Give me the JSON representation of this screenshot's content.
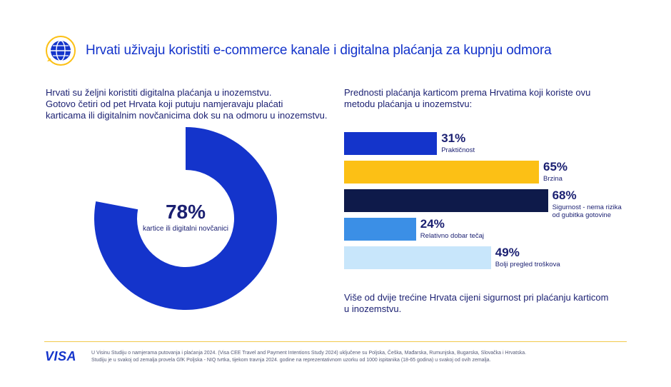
{
  "header": {
    "title": "Hrvati uživaju koristiti e-commerce kanale i digitalna plaćanja za kupnju odmora",
    "icon": "globe-icon"
  },
  "left": {
    "lines": [
      "Hrvati su željni koristiti digitalna plaćanja u inozemstvu.",
      "Gotovo četiri od pet Hrvata koji putuju namjeravaju plaćati",
      "karticama ili digitalnim novčanicima dok su na odmoru u inozemstvu."
    ]
  },
  "right": {
    "heading": "Prednosti plaćanja karticom prema Hrvatima koji koriste ovu metodu plaćanja u inozemstvu:",
    "note": "Više od dvije trećine Hrvata cijeni sigurnost pri plaćanju karticom u inozemstvu."
  },
  "footer": {
    "logo_text": "VISA",
    "footnote_lines": [
      "U Visinu Studiju o namjerama putovanja i plaćanja 2024. (Visa CEE Travel and Payment Intentions Study 2024) uključene su Poljska, Češka, Mađarska, Rumunjska, Bugarska, Slovačka i Hrvatska.",
      "Studiju je u svakoj od zemalja provela GfK Poljska - NIQ tvrtka,  tijekom travnja 2024.  godine na reprezentativnom uzorku od 1000 ispitanika (18-65 godina) u svakoj od ovih zemalja."
    ]
  },
  "colors": {
    "navy": "#1a1f71",
    "blue": "#1434cb",
    "gold": "#fcc015",
    "dark_navy": "#0e1a4a",
    "sky": "#3b8fe6",
    "pale": "#c8e6fb",
    "track": "#ffffff"
  },
  "chart_data": [
    {
      "type": "pie",
      "subtype": "donut",
      "value": 78,
      "value_label": "78%",
      "label": "kartice ili digitalni novčanici",
      "max": 100
    },
    {
      "type": "bar",
      "orientation": "horizontal",
      "xlim": [
        0,
        100
      ],
      "categories": [
        "Praktičnost",
        "Brzina",
        "Sigurnost - nema rizika od gubitka gotovine",
        "Relativno dobar tečaj",
        "Bolji pregled troškova"
      ],
      "label_lines": [
        [
          "Praktičnost"
        ],
        [
          "Brzina"
        ],
        [
          "Sigurnost - nema rizika",
          "od gubitka gotovine"
        ],
        [
          "Relativno dobar tečaj"
        ],
        [
          "Bolji pregled troškova"
        ]
      ],
      "values": [
        31,
        65,
        68,
        24,
        49
      ],
      "value_labels": [
        "31%",
        "65%",
        "68%",
        "24%",
        "49%"
      ],
      "bar_colors": [
        "#1434cb",
        "#fcc015",
        "#0e1a4a",
        "#3b8fe6",
        "#c8e6fb"
      ]
    }
  ]
}
